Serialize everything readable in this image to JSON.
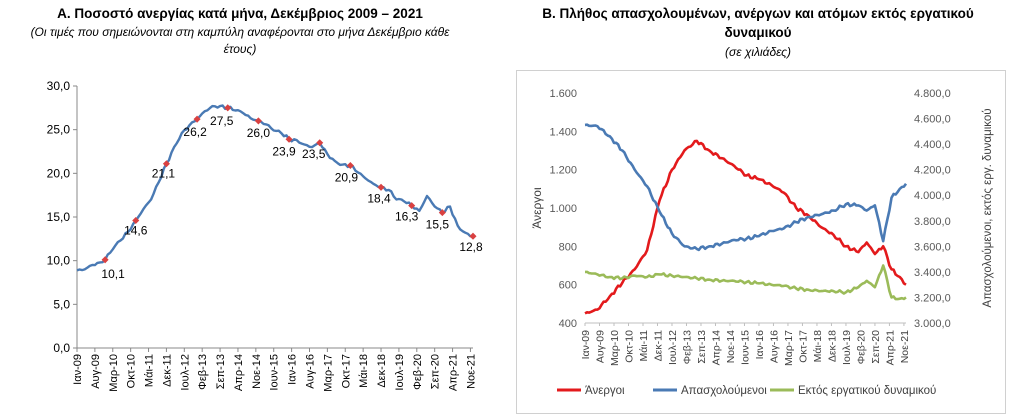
{
  "panel_a": {
    "title": "Α. Ποσοστό ανεργίας κατά μήνα, Δεκέμβριος 2009 – 2021",
    "subtitle": "(Οι τιμές που σημειώνονται στη καμπύλη αναφέρονται στο μήνα Δεκέμβριο κάθε έτους)"
  },
  "panel_b": {
    "title": "Β. Πλήθος απασχολουμένων, ανέργων και ατόμων εκτός εργατικού δυναμικού",
    "subtitle": "(σε χιλιάδες)"
  },
  "chart_data": [
    {
      "type": "line",
      "title": "Α. Ποσοστό ανεργίας κατά μήνα, Δεκέμβριος 2009 – 2021",
      "subtitle": "(Οι τιμές που σημειώνονται στη καμπύλη αναφέρονται στο μήνα Δεκέμβριο κάθε έτους)",
      "ylim": [
        0,
        30
      ],
      "yticks": [
        "0,0",
        "5,0",
        "10,0",
        "15,0",
        "20,0",
        "25,0",
        "30,0"
      ],
      "x_tick_labels": [
        "Ιαν-09",
        "Αυγ-09",
        "Μαρ-10",
        "Οκτ-10",
        "Μάι-11",
        "Δεκ-11",
        "Ιουλ-12",
        "Φεβ-13",
        "Σεπ-13",
        "Απρ-14",
        "Νοε-14",
        "Ιουν-15",
        "Ιαν-16",
        "Αυγ-16",
        "Μαρ-17",
        "Οκτ-17",
        "Μάι-18",
        "Δεκ-18",
        "Ιουλ-19",
        "Φεβ-20",
        "Σεπ-20",
        "Απρ-21",
        "Νοε-21"
      ],
      "series": [
        {
          "color": "#4a7ab4",
          "monthly_anchors": [
            {
              "x": "Ιαν-09",
              "y": 8.9
            },
            {
              "x": "Απρ-09",
              "y": 9.0
            },
            {
              "x": "Ιουλ-09",
              "y": 9.5
            },
            {
              "x": "Οκτ-09",
              "y": 9.8
            },
            {
              "x": "Δεκ-09",
              "y": 10.1
            },
            {
              "x": "Μαρ-10",
              "y": 11.3
            },
            {
              "x": "Ιουν-10",
              "y": 12.3
            },
            {
              "x": "Σεπ-10",
              "y": 13.3
            },
            {
              "x": "Δεκ-10",
              "y": 14.6
            },
            {
              "x": "Μαρ-11",
              "y": 15.9
            },
            {
              "x": "Ιουν-11",
              "y": 17.0
            },
            {
              "x": "Σεπ-11",
              "y": 19.0
            },
            {
              "x": "Δεκ-11",
              "y": 21.1
            },
            {
              "x": "Μαρ-12",
              "y": 23.0
            },
            {
              "x": "Ιουν-12",
              "y": 24.6
            },
            {
              "x": "Σεπ-12",
              "y": 25.5
            },
            {
              "x": "Δεκ-12",
              "y": 26.2
            },
            {
              "x": "Μαρ-13",
              "y": 27.1
            },
            {
              "x": "Ιουν-13",
              "y": 27.7
            },
            {
              "x": "Σεπ-13",
              "y": 27.7
            },
            {
              "x": "Δεκ-13",
              "y": 27.5
            },
            {
              "x": "Μαρ-14",
              "y": 27.2
            },
            {
              "x": "Ιουν-14",
              "y": 26.9
            },
            {
              "x": "Σεπ-14",
              "y": 26.3
            },
            {
              "x": "Δεκ-14",
              "y": 26.0
            },
            {
              "x": "Μαρ-15",
              "y": 25.6
            },
            {
              "x": "Ιουν-15",
              "y": 24.9
            },
            {
              "x": "Σεπ-15",
              "y": 24.6
            },
            {
              "x": "Δεκ-15",
              "y": 23.9
            },
            {
              "x": "Μαρ-16",
              "y": 23.8
            },
            {
              "x": "Ιουν-16",
              "y": 23.3
            },
            {
              "x": "Σεπ-16",
              "y": 23.0
            },
            {
              "x": "Δεκ-16",
              "y": 23.5
            },
            {
              "x": "Μαρ-17",
              "y": 22.2
            },
            {
              "x": "Ιουν-17",
              "y": 21.4
            },
            {
              "x": "Σεπ-17",
              "y": 21.0
            },
            {
              "x": "Δεκ-17",
              "y": 20.9
            },
            {
              "x": "Μαρ-18",
              "y": 20.1
            },
            {
              "x": "Ιουν-18",
              "y": 19.4
            },
            {
              "x": "Σεπ-18",
              "y": 18.8
            },
            {
              "x": "Δεκ-18",
              "y": 18.4
            },
            {
              "x": "Μαρ-19",
              "y": 18.1
            },
            {
              "x": "Ιουν-19",
              "y": 17.0
            },
            {
              "x": "Σεπ-19",
              "y": 16.8
            },
            {
              "x": "Δεκ-19",
              "y": 16.3
            },
            {
              "x": "Μαρ-20",
              "y": 15.7
            },
            {
              "x": "Ιουν-20",
              "y": 17.4
            },
            {
              "x": "Σεπ-20",
              "y": 16.2
            },
            {
              "x": "Δεκ-20",
              "y": 15.5
            },
            {
              "x": "Μαρ-21",
              "y": 16.2
            },
            {
              "x": "Ιουν-21",
              "y": 14.0
            },
            {
              "x": "Σεπ-21",
              "y": 13.2
            },
            {
              "x": "Δεκ-21",
              "y": 12.8
            }
          ]
        }
      ],
      "december_labels": [
        {
          "x": "Δεκ-09",
          "value": 10.1,
          "label": "10,1"
        },
        {
          "x": "Δεκ-10",
          "value": 14.6,
          "label": "14,6"
        },
        {
          "x": "Δεκ-11",
          "value": 21.1,
          "label": "21,1"
        },
        {
          "x": "Δεκ-12",
          "value": 26.2,
          "label": "26,2"
        },
        {
          "x": "Δεκ-13",
          "value": 27.5,
          "label": "27,5"
        },
        {
          "x": "Δεκ-14",
          "value": 26.0,
          "label": "26,0"
        },
        {
          "x": "Δεκ-15",
          "value": 23.9,
          "label": "23,9"
        },
        {
          "x": "Δεκ-16",
          "value": 23.5,
          "label": "23,5"
        },
        {
          "x": "Δεκ-17",
          "value": 20.9,
          "label": "20,9"
        },
        {
          "x": "Δεκ-18",
          "value": 18.4,
          "label": "18,4"
        },
        {
          "x": "Δεκ-19",
          "value": 16.3,
          "label": "16,3"
        },
        {
          "x": "Δεκ-20",
          "value": 15.5,
          "label": "15,5"
        },
        {
          "x": "Δεκ-21",
          "value": 12.8,
          "label": "12,8"
        }
      ],
      "marker_color": "#d94141",
      "grid": false
    },
    {
      "type": "line",
      "title": "Β. Πλήθος απασχολουμένων, ανέργων και ατόμων εκτός εργατικού δυναμικού",
      "subtitle": "(σε χιλιάδες)",
      "ylabel_left": "Άνεργοι",
      "ylabel_right": "Απασχολούμενοι, εκτός εργ. δυναμικού",
      "ylim_left": [
        400,
        1600
      ],
      "yticks_left": [
        "400",
        "600",
        "800",
        "1.000",
        "1.200",
        "1.400",
        "1.600"
      ],
      "ylim_right": [
        3000,
        4800
      ],
      "yticks_right": [
        "3.000,0",
        "3.200,0",
        "3.400,0",
        "3.600,0",
        "3.800,0",
        "4.000,0",
        "4.200,0",
        "4.400,0",
        "4.600,0",
        "4.800,0"
      ],
      "x_tick_labels": [
        "Ιαν-09",
        "Αυγ-09",
        "Μαρ-10",
        "Οκτ-10",
        "Μάι-11",
        "Δεκ-11",
        "Ιουλ-12",
        "Φεβ-13",
        "Σεπ-13",
        "Απρ-14",
        "Νοε-14",
        "Ιουν-15",
        "Ιαν-16",
        "Αυγ-16",
        "Μαρ-17",
        "Οκτ-17",
        "Μάι-18",
        "Δεκ-18",
        "Ιουλ-19",
        "Φεβ-20",
        "Σεπ-20",
        "Απρ-21",
        "Νοε-21"
      ],
      "legend_position": "bottom",
      "grid": false,
      "series": [
        {
          "name": "Άνεργοι",
          "axis": "left",
          "color": "#e31a1c",
          "values": [
            {
              "x": "Ιαν-09",
              "y": 450
            },
            {
              "x": "Ιουλ-09",
              "y": 470
            },
            {
              "x": "Ιαν-10",
              "y": 540
            },
            {
              "x": "Ιουλ-10",
              "y": 610
            },
            {
              "x": "Ιαν-11",
              "y": 680
            },
            {
              "x": "Ιουλ-11",
              "y": 780
            },
            {
              "x": "Ιαν-12",
              "y": 1040
            },
            {
              "x": "Ιουλ-12",
              "y": 1200
            },
            {
              "x": "Ιαν-13",
              "y": 1300
            },
            {
              "x": "Ιουλ-13",
              "y": 1350
            },
            {
              "x": "Ιαν-14",
              "y": 1300
            },
            {
              "x": "Ιουλ-14",
              "y": 1260
            },
            {
              "x": "Ιαν-15",
              "y": 1220
            },
            {
              "x": "Ιουλ-15",
              "y": 1170
            },
            {
              "x": "Ιαν-16",
              "y": 1150
            },
            {
              "x": "Ιουλ-16",
              "y": 1120
            },
            {
              "x": "Ιαν-17",
              "y": 1080
            },
            {
              "x": "Ιουλ-17",
              "y": 1000
            },
            {
              "x": "Ιαν-18",
              "y": 960
            },
            {
              "x": "Ιουλ-18",
              "y": 900
            },
            {
              "x": "Ιαν-19",
              "y": 860
            },
            {
              "x": "Ιουλ-19",
              "y": 800
            },
            {
              "x": "Ιαν-20",
              "y": 770
            },
            {
              "x": "Μάι-20",
              "y": 820
            },
            {
              "x": "Σεπ-20",
              "y": 760
            },
            {
              "x": "Ιαν-21",
              "y": 800
            },
            {
              "x": "Μάι-21",
              "y": 680
            },
            {
              "x": "Σεπ-21",
              "y": 640
            },
            {
              "x": "Δεκ-21",
              "y": 600
            }
          ]
        },
        {
          "name": "Απασχολούμενοι",
          "axis": "right",
          "color": "#4a7ab4",
          "values": [
            {
              "x": "Ιαν-09",
              "y": 4550
            },
            {
              "x": "Ιουλ-09",
              "y": 4540
            },
            {
              "x": "Ιαν-10",
              "y": 4460
            },
            {
              "x": "Ιουλ-10",
              "y": 4350
            },
            {
              "x": "Ιαν-11",
              "y": 4200
            },
            {
              "x": "Ιουλ-11",
              "y": 4070
            },
            {
              "x": "Ιαν-12",
              "y": 3870
            },
            {
              "x": "Ιουλ-12",
              "y": 3700
            },
            {
              "x": "Ιαν-13",
              "y": 3600
            },
            {
              "x": "Ιουλ-13",
              "y": 3580
            },
            {
              "x": "Ιαν-14",
              "y": 3600
            },
            {
              "x": "Ιουλ-14",
              "y": 3620
            },
            {
              "x": "Ιαν-15",
              "y": 3650
            },
            {
              "x": "Ιουλ-15",
              "y": 3660
            },
            {
              "x": "Ιαν-16",
              "y": 3680
            },
            {
              "x": "Ιουλ-16",
              "y": 3720
            },
            {
              "x": "Ιαν-17",
              "y": 3740
            },
            {
              "x": "Ιουλ-17",
              "y": 3790
            },
            {
              "x": "Ιαν-18",
              "y": 3830
            },
            {
              "x": "Ιουλ-18",
              "y": 3850
            },
            {
              "x": "Ιαν-19",
              "y": 3880
            },
            {
              "x": "Ιουλ-19",
              "y": 3930
            },
            {
              "x": "Ιαν-20",
              "y": 3920
            },
            {
              "x": "Μάι-20",
              "y": 3880
            },
            {
              "x": "Σεπ-20",
              "y": 3920
            },
            {
              "x": "Ιαν-21",
              "y": 3640
            },
            {
              "x": "Μάι-21",
              "y": 3980
            },
            {
              "x": "Σεπ-21",
              "y": 4050
            },
            {
              "x": "Δεκ-21",
              "y": 4090
            }
          ]
        },
        {
          "name": "Εκτός εργατικού δυναμικού",
          "axis": "right",
          "color": "#9bbb59",
          "values": [
            {
              "x": "Ιαν-09",
              "y": 3400
            },
            {
              "x": "Ιουλ-09",
              "y": 3380
            },
            {
              "x": "Ιαν-10",
              "y": 3360
            },
            {
              "x": "Ιουλ-10",
              "y": 3350
            },
            {
              "x": "Ιαν-11",
              "y": 3370
            },
            {
              "x": "Ιουλ-11",
              "y": 3360
            },
            {
              "x": "Ιαν-12",
              "y": 3380
            },
            {
              "x": "Ιουλ-12",
              "y": 3370
            },
            {
              "x": "Ιαν-13",
              "y": 3360
            },
            {
              "x": "Ιουλ-13",
              "y": 3350
            },
            {
              "x": "Ιαν-14",
              "y": 3340
            },
            {
              "x": "Ιουλ-14",
              "y": 3330
            },
            {
              "x": "Ιαν-15",
              "y": 3330
            },
            {
              "x": "Ιουλ-15",
              "y": 3320
            },
            {
              "x": "Ιαν-16",
              "y": 3310
            },
            {
              "x": "Ιουλ-16",
              "y": 3300
            },
            {
              "x": "Ιαν-17",
              "y": 3290
            },
            {
              "x": "Ιουλ-17",
              "y": 3270
            },
            {
              "x": "Ιαν-18",
              "y": 3260
            },
            {
              "x": "Ιουλ-18",
              "y": 3250
            },
            {
              "x": "Ιαν-19",
              "y": 3250
            },
            {
              "x": "Ιουλ-19",
              "y": 3240
            },
            {
              "x": "Ιαν-20",
              "y": 3280
            },
            {
              "x": "Μάι-20",
              "y": 3330
            },
            {
              "x": "Σεπ-20",
              "y": 3280
            },
            {
              "x": "Ιαν-21",
              "y": 3450
            },
            {
              "x": "Μάι-21",
              "y": 3200
            },
            {
              "x": "Σεπ-21",
              "y": 3190
            },
            {
              "x": "Δεκ-21",
              "y": 3200
            }
          ]
        }
      ]
    }
  ]
}
